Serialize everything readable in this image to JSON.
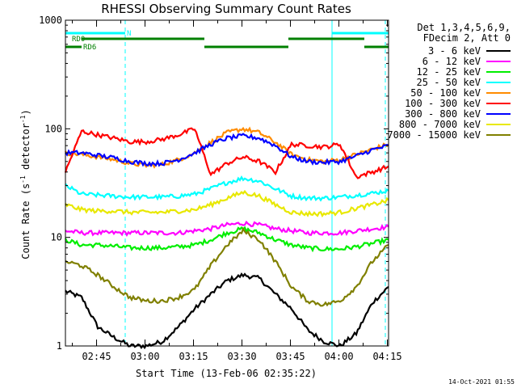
{
  "chart_data": {
    "type": "line",
    "title": "RHESSI Observing Summary Count Rates",
    "xlabel": "Start Time (13-Feb-06 02:35:22)",
    "ylabel": "Count Rate (s⁻¹ detector⁻¹)",
    "ylabel_main": "Count Rate (s",
    "ylabel_mid": " detector",
    "ylabel_end": ")",
    "ylabel_sup": "-1",
    "yscale": "log",
    "ylim": [
      1,
      1000
    ],
    "xlim_minutes": [
      0,
      100
    ],
    "x_tick_labels": [
      "02:45",
      "03:00",
      "03:15",
      "03:30",
      "03:45",
      "04:00",
      "04:15"
    ],
    "x_tick_minutes": [
      9.63,
      24.63,
      39.63,
      54.63,
      69.63,
      84.63,
      99.63
    ],
    "y_tick_labels": [
      "1",
      "10",
      "100",
      "1000"
    ],
    "y_tick_values": [
      1,
      10,
      100,
      1000
    ],
    "legend_header": [
      "Det 1,3,4,5,6,9,",
      "FDecim 2, Att 0"
    ],
    "legend_position": "right",
    "x": [
      0,
      5,
      10,
      15,
      20,
      25,
      30,
      35,
      40,
      45,
      50,
      55,
      60,
      65,
      70,
      75,
      80,
      85,
      90,
      95,
      100
    ],
    "series": [
      {
        "name": "3 - 6 keV",
        "color": "#000000",
        "values": [
          3.2,
          2.8,
          1.5,
          1.2,
          1.0,
          1.0,
          1.1,
          1.5,
          2.2,
          3.0,
          4.0,
          4.5,
          4.2,
          3.0,
          2.2,
          1.4,
          1.1,
          1.0,
          1.3,
          2.5,
          3.5
        ]
      },
      {
        "name": "6 - 12 keV",
        "color": "#ff00ff",
        "values": [
          11.5,
          11,
          11,
          11,
          11,
          11,
          11,
          11,
          11.5,
          12,
          13,
          13.5,
          13,
          12,
          11.5,
          11,
          11,
          11,
          11.5,
          12,
          12.5
        ]
      },
      {
        "name": "12 - 25 keV",
        "color": "#00ee00",
        "values": [
          9.5,
          8.5,
          8.5,
          8.3,
          8.0,
          8.0,
          8.0,
          8.2,
          8.5,
          9.5,
          11,
          12,
          11,
          9.5,
          8.5,
          8,
          7.8,
          7.8,
          8.2,
          8.8,
          9.5
        ]
      },
      {
        "name": "25 - 50 keV",
        "color": "#00ffff",
        "values": [
          30,
          25,
          24.5,
          24,
          23.5,
          23.5,
          23.5,
          24,
          25,
          28,
          32,
          35,
          33,
          28,
          24,
          23,
          23,
          23.5,
          24.5,
          25.5,
          27
        ]
      },
      {
        "name": "50 - 100 keV",
        "color": "#ff8c00",
        "values": [
          60,
          58,
          55,
          52,
          48,
          46,
          47,
          52,
          60,
          75,
          92,
          100,
          92,
          75,
          58,
          52,
          50,
          52,
          58,
          65,
          72
        ]
      },
      {
        "name": "100 - 300 keV",
        "color": "#ff0000",
        "values": [
          40,
          95,
          88,
          82,
          76,
          76,
          80,
          88,
          100,
          38,
          48,
          55,
          50,
          40,
          72,
          70,
          68,
          72,
          36,
          40,
          45
        ]
      },
      {
        "name": "300 - 800 keV",
        "color": "#0000ff",
        "values": [
          60,
          60,
          57,
          54,
          50,
          48,
          48,
          52,
          60,
          72,
          82,
          86,
          82,
          70,
          55,
          50,
          49,
          50,
          56,
          64,
          70
        ]
      },
      {
        "name": "800 - 7000 keV",
        "color": "#e8e800",
        "values": [
          20,
          18,
          17.5,
          17.5,
          17,
          17,
          17,
          17.5,
          18,
          20,
          23,
          26,
          24,
          20,
          17,
          16.5,
          16.5,
          17,
          18.5,
          20,
          22
        ]
      },
      {
        "name": "7000 - 15000 keV",
        "color": "#808000",
        "values": [
          6,
          5.5,
          4.5,
          3.5,
          2.8,
          2.6,
          2.6,
          2.8,
          3.3,
          5.5,
          8.5,
          11.5,
          9.5,
          6,
          3.5,
          2.6,
          2.4,
          2.6,
          3.5,
          6,
          8.5
        ]
      }
    ],
    "attenuator_bars": [
      {
        "label": "N",
        "color": "#00ffff",
        "segments": [
          [
            0,
            18.5
          ],
          [
            82.5,
            100
          ]
        ]
      },
      {
        "label": "RD0",
        "color": "#008000",
        "segments": [
          [
            5,
            43
          ],
          [
            69,
            92.5
          ]
        ]
      },
      {
        "label": "RD6",
        "color": "#008000",
        "segments": [
          [
            0,
            5
          ],
          [
            43,
            69
          ],
          [
            92.5,
            100
          ]
        ]
      }
    ],
    "vertical_markers_minutes": [
      18.5,
      82.5,
      99
    ],
    "grid": false
  },
  "footer": {
    "timestamp": "14-Oct-2021 01:55"
  }
}
